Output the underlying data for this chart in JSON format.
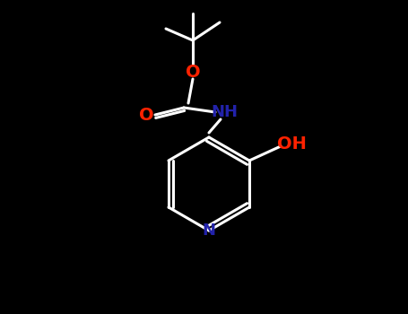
{
  "bg_color": "#000000",
  "bond_color": "#ffffff",
  "o_color": "#ff2200",
  "n_color": "#2222aa",
  "lw": 2.2,
  "figsize": [
    4.55,
    3.5
  ],
  "dpi": 100,
  "xlim": [
    0,
    455
  ],
  "ylim": [
    0,
    350
  ]
}
